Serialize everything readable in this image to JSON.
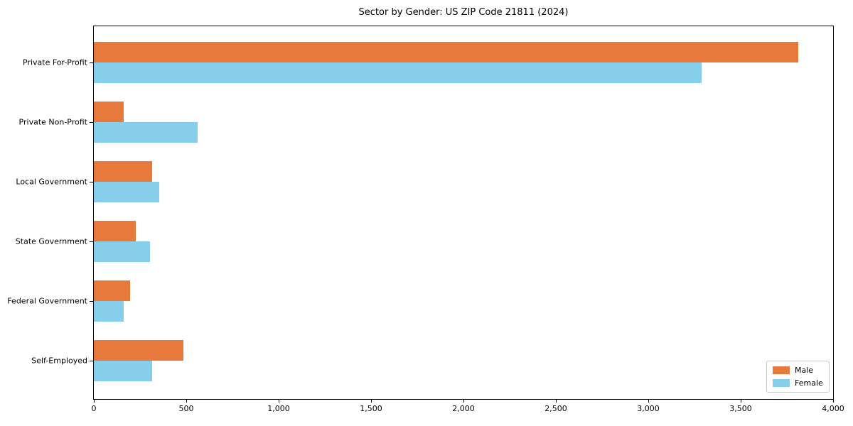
{
  "figure": {
    "title": "Sector by Gender: US ZIP Code 21811 (2024)"
  },
  "chart_data": {
    "type": "bar",
    "orientation": "horizontal",
    "title": "Sector by Gender: US ZIP Code 21811 (2024)",
    "categories": [
      "Private For-Profit",
      "Private Non-Profit",
      "Local Government",
      "State Government",
      "Federal Government",
      "Self-Employed"
    ],
    "series": [
      {
        "name": "Male",
        "color": "#e8793d",
        "values": [
          3810,
          160,
          315,
          225,
          195,
          485
        ]
      },
      {
        "name": "Female",
        "color": "#87ceeb",
        "values": [
          3290,
          560,
          355,
          305,
          160,
          315
        ]
      }
    ],
    "xlabel": "",
    "ylabel": "",
    "xlim": [
      0,
      4000
    ],
    "xticks": [
      0,
      500,
      1000,
      1500,
      2000,
      2500,
      3000,
      3500,
      4000
    ],
    "xtick_labels": [
      "0",
      "500",
      "1,000",
      "1,500",
      "2,000",
      "2,500",
      "3,000",
      "3,500",
      "4,000"
    ],
    "grid": false,
    "legend": {
      "position": "lower right"
    },
    "colors": {
      "axis": "#000000",
      "legend_border": "#cccccc",
      "background": "#ffffff"
    }
  }
}
